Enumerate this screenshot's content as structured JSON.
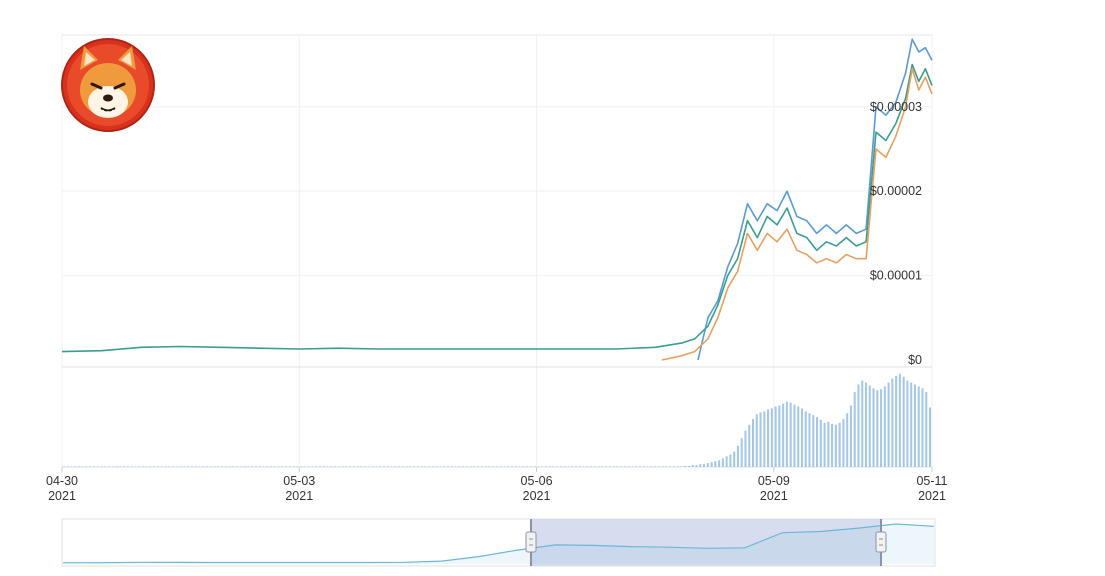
{
  "chart_data": {
    "type": "line",
    "title": "",
    "xlabel": "",
    "ylabel": "",
    "logo_icon": "shiba-inu-coin-logo",
    "x_ticks": [
      {
        "day": "04-30",
        "year": "2021"
      },
      {
        "day": "05-03",
        "year": "2021"
      },
      {
        "day": "05-06",
        "year": "2021"
      },
      {
        "day": "05-09",
        "year": "2021"
      },
      {
        "day": "05-11",
        "year": "2021"
      }
    ],
    "x_range": [
      "2021-04-30",
      "2021-05-11"
    ],
    "y_ticks": [
      "$0",
      "$0.00001",
      "$0.00002",
      "$0.00003"
    ],
    "y_range": [
      0,
      3.85e-05
    ],
    "grid": true,
    "series": [
      {
        "color": "#5b9bd5",
        "x": [
          "2021-05-08 01:00",
          "2021-05-08 04:00",
          "2021-05-08 07:00",
          "2021-05-08 10:00",
          "2021-05-08 13:00",
          "2021-05-08 16:00",
          "2021-05-08 19:00",
          "2021-05-08 22:00",
          "2021-05-09 01:00",
          "2021-05-09 04:00",
          "2021-05-09 07:00",
          "2021-05-09 10:00",
          "2021-05-09 13:00",
          "2021-05-09 16:00",
          "2021-05-09 19:00",
          "2021-05-09 22:00",
          "2021-05-10 01:00",
          "2021-05-10 04:00",
          "2021-05-10 07:00",
          "2021-05-10 10:00",
          "2021-05-10 13:00",
          "2021-05-10 16:00",
          "2021-05-10 18:00",
          "2021-05-10 20:00",
          "2021-05-10 22:00",
          "2021-05-11 00:00"
        ],
        "values": [
          0.0,
          5e-06,
          7e-06,
          1.1e-05,
          1.38e-05,
          1.85e-05,
          1.65e-05,
          1.85e-05,
          1.77e-05,
          2e-05,
          1.7e-05,
          1.65e-05,
          1.5e-05,
          1.6e-05,
          1.5e-05,
          1.6e-05,
          1.5e-05,
          1.55e-05,
          3e-05,
          2.9e-05,
          3.05e-05,
          3.4e-05,
          3.8e-05,
          3.65e-05,
          3.7e-05,
          3.55e-05
        ]
      },
      {
        "color": "#3a9e8f",
        "x": [
          "2021-04-30 00:00",
          "2021-04-30 12:00",
          "2021-05-01 00:00",
          "2021-05-01 12:00",
          "2021-05-02 00:00",
          "2021-05-02 12:00",
          "2021-05-03 00:00",
          "2021-05-03 12:00",
          "2021-05-04 00:00",
          "2021-05-04 12:00",
          "2021-05-05 00:00",
          "2021-05-05 12:00",
          "2021-05-06 00:00",
          "2021-05-06 12:00",
          "2021-05-07 00:00",
          "2021-05-07 12:00",
          "2021-05-07 20:00",
          "2021-05-08 00:00",
          "2021-05-08 04:00",
          "2021-05-08 07:00",
          "2021-05-08 10:00",
          "2021-05-08 13:00",
          "2021-05-08 16:00",
          "2021-05-08 19:00",
          "2021-05-08 22:00",
          "2021-05-09 01:00",
          "2021-05-09 04:00",
          "2021-05-09 07:00",
          "2021-05-09 10:00",
          "2021-05-09 13:00",
          "2021-05-09 16:00",
          "2021-05-09 19:00",
          "2021-05-09 22:00",
          "2021-05-10 01:00",
          "2021-05-10 04:00",
          "2021-05-10 07:00",
          "2021-05-10 10:00",
          "2021-05-10 13:00",
          "2021-05-10 16:00",
          "2021-05-10 18:00",
          "2021-05-10 20:00",
          "2021-05-10 22:00",
          "2021-05-11 00:00"
        ],
        "values": [
          1e-06,
          1.1e-06,
          1.5e-06,
          1.6e-06,
          1.5e-06,
          1.4e-06,
          1.3e-06,
          1.4e-06,
          1.3e-06,
          1.3e-06,
          1.3e-06,
          1.3e-06,
          1.3e-06,
          1.3e-06,
          1.3e-06,
          1.5e-06,
          2e-06,
          2.5e-06,
          4e-06,
          6.5e-06,
          1e-05,
          1.2e-05,
          1.65e-05,
          1.45e-05,
          1.7e-05,
          1.6e-05,
          1.8e-05,
          1.5e-05,
          1.45e-05,
          1.3e-05,
          1.4e-05,
          1.35e-05,
          1.45e-05,
          1.35e-05,
          1.4e-05,
          2.7e-05,
          2.6e-05,
          2.8e-05,
          3.1e-05,
          3.5e-05,
          3.3e-05,
          3.45e-05,
          3.25e-05
        ]
      },
      {
        "color": "#e8a060",
        "x": [
          "2021-05-07 14:00",
          "2021-05-07 20:00",
          "2021-05-08 00:00",
          "2021-05-08 04:00",
          "2021-05-08 07:00",
          "2021-05-08 10:00",
          "2021-05-08 13:00",
          "2021-05-08 16:00",
          "2021-05-08 19:00",
          "2021-05-08 22:00",
          "2021-05-09 01:00",
          "2021-05-09 04:00",
          "2021-05-09 07:00",
          "2021-05-09 10:00",
          "2021-05-09 13:00",
          "2021-05-09 16:00",
          "2021-05-09 19:00",
          "2021-05-09 22:00",
          "2021-05-10 01:00",
          "2021-05-10 04:00",
          "2021-05-10 07:00",
          "2021-05-10 10:00",
          "2021-05-10 13:00",
          "2021-05-10 16:00",
          "2021-05-10 18:00",
          "2021-05-10 20:00",
          "2021-05-10 22:00",
          "2021-05-11 00:00"
        ],
        "values": [
          0.0,
          5e-07,
          1e-06,
          2.5e-06,
          5e-06,
          8.5e-06,
          1.05e-05,
          1.5e-05,
          1.3e-05,
          1.5e-05,
          1.4e-05,
          1.55e-05,
          1.3e-05,
          1.25e-05,
          1.15e-05,
          1.2e-05,
          1.15e-05,
          1.25e-05,
          1.2e-05,
          1.2e-05,
          2.5e-05,
          2.4e-05,
          2.65e-05,
          3e-05,
          3.45e-05,
          3.2e-05,
          3.35e-05,
          3.15e-05
        ]
      }
    ],
    "volume": {
      "color": "#5b9bd5",
      "values": [
        0,
        0,
        0,
        0,
        0,
        0,
        0,
        0,
        0,
        0,
        0,
        0,
        0,
        0,
        0,
        0,
        0,
        0,
        0,
        0,
        0,
        0,
        0,
        0,
        0,
        0,
        0,
        0,
        0,
        0,
        0,
        0,
        0,
        0,
        0,
        0,
        0,
        0,
        0,
        0,
        0,
        0,
        0,
        0,
        0,
        0,
        0,
        0,
        0,
        0,
        0,
        0,
        0,
        0,
        0,
        0,
        0,
        0,
        0,
        0,
        0,
        0,
        0,
        0,
        0,
        0,
        0,
        0,
        0,
        0,
        0,
        0,
        0,
        0,
        0,
        0,
        0,
        0,
        0,
        0,
        0,
        0,
        0,
        0,
        0,
        0,
        0,
        0,
        0,
        0,
        0,
        0,
        0,
        0,
        0,
        0,
        0,
        0,
        0,
        0,
        0,
        0,
        0,
        0,
        0,
        0,
        0,
        0,
        0,
        0,
        0,
        0,
        0,
        0,
        0,
        0,
        0,
        0,
        0,
        0,
        0,
        0,
        0,
        0,
        0,
        0,
        0,
        0,
        0,
        0,
        0,
        0,
        0,
        0,
        0,
        0,
        0,
        0,
        0,
        0,
        0,
        0,
        0,
        0,
        0,
        0,
        0,
        0,
        0,
        0,
        0,
        0,
        0,
        0,
        0,
        0,
        0,
        0,
        0,
        0,
        0,
        0,
        0,
        0,
        0,
        0.01,
        0.01,
        0.02,
        0.02,
        0.03,
        0.03,
        0.04,
        0.05,
        0.06,
        0.07,
        0.09,
        0.11,
        0.13,
        0.16,
        0.22,
        0.3,
        0.38,
        0.44,
        0.5,
        0.55,
        0.57,
        0.58,
        0.6,
        0.61,
        0.63,
        0.64,
        0.66,
        0.68,
        0.67,
        0.65,
        0.63,
        0.61,
        0.58,
        0.56,
        0.54,
        0.52,
        0.49,
        0.46,
        0.47,
        0.45,
        0.44,
        0.46,
        0.5,
        0.56,
        0.64,
        0.78,
        0.86,
        0.9,
        0.88,
        0.85,
        0.82,
        0.8,
        0.81,
        0.84,
        0.88,
        0.92,
        0.95,
        0.97,
        0.94,
        0.9,
        0.88,
        0.86,
        0.84,
        0.82,
        0.78,
        0.62
      ]
    },
    "navigator": {
      "range": [
        "2021-05-06",
        "2021-05-11"
      ],
      "values": [
        1e-06,
        1.1e-06,
        1.5e-06,
        1.4e-06,
        1.3e-06,
        1.3e-06,
        1.3e-06,
        1.3e-06,
        1.3e-06,
        1.5e-06,
        2.5e-06,
        6.5e-06,
        1.2e-05,
        1.65e-05,
        1.6e-05,
        1.5e-05,
        1.45e-05,
        1.35e-05,
        1.4e-05,
        2.7e-05,
        2.8e-05,
        3.1e-05,
        3.45e-05,
        3.25e-05
      ]
    }
  }
}
